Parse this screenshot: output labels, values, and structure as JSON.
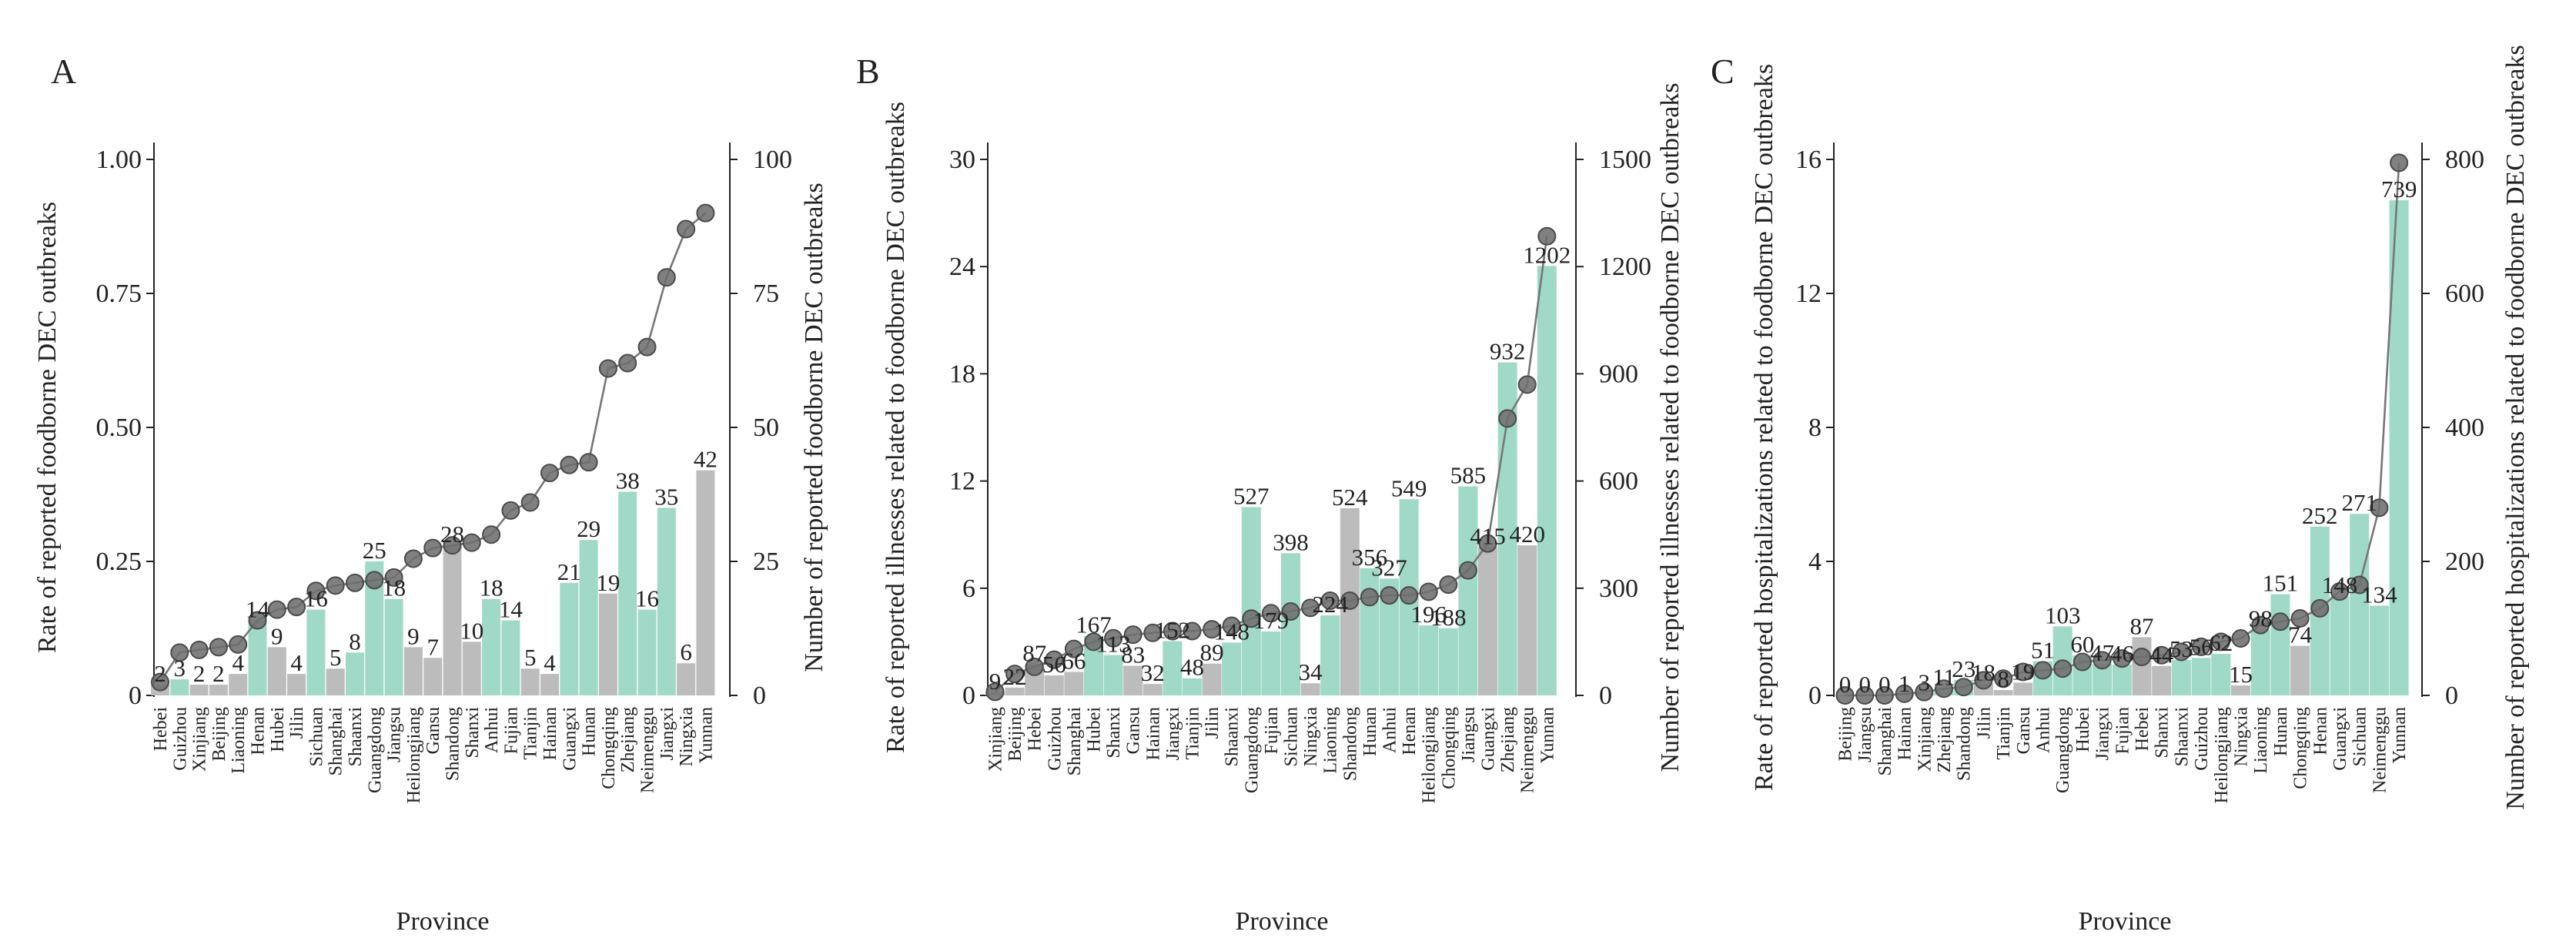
{
  "chart_data": [
    {
      "type": "bar",
      "panel": "A",
      "xlabel": "Province",
      "ylabel_left": "Rate of reported foodborne DEC outbreaks",
      "ylabel_right": "Number of reported foodborne DEC outbreaks",
      "left_ylim": [
        0,
        1.0
      ],
      "left_ticks": [
        "0",
        "0.25",
        "0.50",
        "0.75",
        "1.00"
      ],
      "left_tick_values": [
        0,
        0.25,
        0.5,
        0.75,
        1.0
      ],
      "right_ylim": [
        0,
        100
      ],
      "right_ticks": [
        "0",
        "25",
        "50",
        "75",
        "100"
      ],
      "right_tick_values": [
        0,
        25,
        50,
        75,
        100
      ],
      "categories": [
        "Hebei",
        "Guizhou",
        "Xinjiang",
        "Beijing",
        "Liaoning",
        "Henan",
        "Hubei",
        "Jilin",
        "Sichuan",
        "Shanghai",
        "Shaanxi",
        "Guangdong",
        "Jiangsu",
        "Heilongjiang",
        "Gansu",
        "Shandong",
        "Shanxi",
        "Anhui",
        "Fujian",
        "Tianjin",
        "Hainan",
        "Guangxi",
        "Hunan",
        "Chongqing",
        "Zhejiang",
        "Neimenggu",
        "Jiangxi",
        "Ningxia",
        "Yunnan"
      ],
      "counts": [
        2,
        3,
        2,
        2,
        4,
        14,
        9,
        4,
        16,
        5,
        8,
        25,
        18,
        9,
        7,
        28,
        10,
        18,
        14,
        5,
        4,
        21,
        29,
        19,
        38,
        16,
        35,
        6,
        42
      ],
      "count_labels": [
        "2",
        "3",
        "2",
        "2",
        "4",
        "14",
        "9",
        "4",
        "16",
        "5",
        "8",
        "25",
        "18",
        "9",
        "7",
        "28",
        "10",
        "18",
        "14",
        "5",
        "4",
        "21",
        "29",
        "19",
        "38",
        "16",
        "35",
        "6",
        "42"
      ],
      "rates": [
        0.025,
        0.08,
        0.085,
        0.09,
        0.095,
        0.14,
        0.16,
        0.165,
        0.195,
        0.205,
        0.21,
        0.215,
        0.22,
        0.255,
        0.275,
        0.28,
        0.285,
        0.3,
        0.345,
        0.36,
        0.415,
        0.43,
        0.435,
        0.61,
        0.62,
        0.65,
        0.78,
        0.87,
        0.9
      ],
      "bar_colors": [
        "grey",
        "green",
        "grey",
        "grey",
        "grey",
        "green",
        "grey",
        "grey",
        "green",
        "grey",
        "green",
        "green",
        "green",
        "grey",
        "grey",
        "grey",
        "grey",
        "green",
        "green",
        "grey",
        "grey",
        "green",
        "green",
        "grey",
        "green",
        "green",
        "green",
        "grey",
        "grey"
      ]
    },
    {
      "type": "bar",
      "panel": "B",
      "xlabel": "Province",
      "ylabel_left": "Rate of reported illnesses related to foodborne DEC outbreaks",
      "ylabel_right": "Number of reported illnesses related to foodborne DEC outbreaks",
      "left_ylim": [
        0,
        30
      ],
      "left_ticks": [
        "0",
        "6",
        "12",
        "18",
        "24",
        "30"
      ],
      "left_tick_values": [
        0,
        6,
        12,
        18,
        24,
        30
      ],
      "right_ylim": [
        0,
        1500
      ],
      "right_ticks": [
        "0",
        "300",
        "600",
        "900",
        "1200",
        "1500"
      ],
      "right_tick_values": [
        0,
        300,
        600,
        900,
        1200,
        1500
      ],
      "categories": [
        "Xinjiang",
        "Beijing",
        "Hebei",
        "Guizhou",
        "Shanghai",
        "Hubei",
        "Shanxi",
        "Gansu",
        "Hainan",
        "Jiangxi",
        "Tianjin",
        "Jilin",
        "Shaanxi",
        "Guangdong",
        "Fujian",
        "Sichuan",
        "Ningxia",
        "Liaoning",
        "Shandong",
        "Hunan",
        "Anhui",
        "Henan",
        "Heilongjiang",
        "Chongqing",
        "Jiangsu",
        "Guangxi",
        "Zhejiang",
        "Neimenggu",
        "Yunnan"
      ],
      "counts": [
        9,
        22,
        87,
        56,
        66,
        167,
        113,
        83,
        32,
        152,
        48,
        89,
        148,
        527,
        179,
        398,
        34,
        224,
        524,
        356,
        327,
        549,
        196,
        188,
        585,
        415,
        932,
        420,
        1202
      ],
      "count_labels": [
        "9",
        "22",
        "87",
        "56",
        "66",
        "167",
        "113",
        "83",
        "32",
        "152",
        "48",
        "89",
        "148",
        "527",
        "179",
        "398",
        "34",
        "224",
        "524",
        "356",
        "327",
        "549",
        "196",
        "188",
        "585",
        "415",
        "932",
        "420",
        "1202"
      ],
      "rates": [
        0.2,
        1.2,
        1.6,
        2.0,
        2.6,
        3.0,
        3.2,
        3.4,
        3.5,
        3.6,
        3.6,
        3.7,
        3.9,
        4.3,
        4.6,
        4.7,
        4.9,
        5.3,
        5.3,
        5.5,
        5.6,
        5.6,
        5.8,
        6.2,
        7.0,
        8.5,
        15.5,
        17.4,
        25.7
      ],
      "bar_colors": [
        "grey",
        "grey",
        "grey",
        "grey",
        "grey",
        "green",
        "green",
        "grey",
        "grey",
        "green",
        "green",
        "grey",
        "green",
        "green",
        "green",
        "green",
        "grey",
        "green",
        "grey",
        "green",
        "green",
        "green",
        "green",
        "green",
        "green",
        "grey",
        "green",
        "grey",
        "green"
      ]
    },
    {
      "type": "bar",
      "panel": "C",
      "xlabel": "Province",
      "ylabel_left": "Rate of reported hospitalizations related to foodborne DEC outbreaks",
      "ylabel_right": "Number of reported hospitalizations related to foodborne DEC outbreaks",
      "left_ylim": [
        0,
        16
      ],
      "left_ticks": [
        "0",
        "4",
        "8",
        "12",
        "16"
      ],
      "left_tick_values": [
        0,
        4,
        8,
        12,
        16
      ],
      "right_ylim": [
        0,
        800
      ],
      "right_ticks": [
        "0",
        "200",
        "400",
        "600",
        "800"
      ],
      "right_tick_values": [
        0,
        200,
        400,
        600,
        800
      ],
      "categories": [
        "Beijing",
        "Jiangsu",
        "Shanghai",
        "Hainan",
        "Xinjiang",
        "Zhejiang",
        "Shandong",
        "Jilin",
        "Tianjin",
        "Gansu",
        "Anhui",
        "Guangdong",
        "Hubei",
        "Jiangxi",
        "Fujian",
        "Hebei",
        "Shanxi",
        "Shaanxi",
        "Guizhou",
        "Heilongjiang",
        "Ningxia",
        "Liaoning",
        "Hunan",
        "Chongqing",
        "Henan",
        "Guangxi",
        "Sichuan",
        "Neimenggu",
        "Yunnan"
      ],
      "counts": [
        0,
        0,
        0,
        1,
        3,
        11,
        23,
        18,
        8,
        19,
        51,
        103,
        60,
        47,
        46,
        87,
        44,
        53,
        56,
        62,
        15,
        98,
        151,
        74,
        252,
        148,
        271,
        134,
        739
      ],
      "count_labels": [
        "0",
        "0",
        "0",
        "1",
        "3",
        "11",
        "23",
        "18",
        "8",
        "19",
        "51",
        "103",
        "60",
        "47",
        "46",
        "87",
        "44",
        "53",
        "56",
        "62",
        "15",
        "98",
        "151",
        "74",
        "252",
        "148",
        "271",
        "134",
        "739"
      ],
      "rates": [
        0.0,
        0.0,
        0.0,
        0.05,
        0.1,
        0.2,
        0.25,
        0.45,
        0.5,
        0.7,
        0.75,
        0.8,
        1.0,
        1.05,
        1.1,
        1.15,
        1.2,
        1.3,
        1.45,
        1.6,
        1.7,
        2.1,
        2.2,
        2.3,
        2.6,
        3.1,
        3.3,
        5.6,
        15.9
      ],
      "bar_colors": [
        "grey",
        "grey",
        "grey",
        "grey",
        "grey",
        "green",
        "green",
        "grey",
        "grey",
        "grey",
        "green",
        "green",
        "green",
        "green",
        "green",
        "grey",
        "grey",
        "green",
        "green",
        "green",
        "grey",
        "green",
        "green",
        "grey",
        "green",
        "green",
        "green",
        "green",
        "green"
      ]
    }
  ]
}
